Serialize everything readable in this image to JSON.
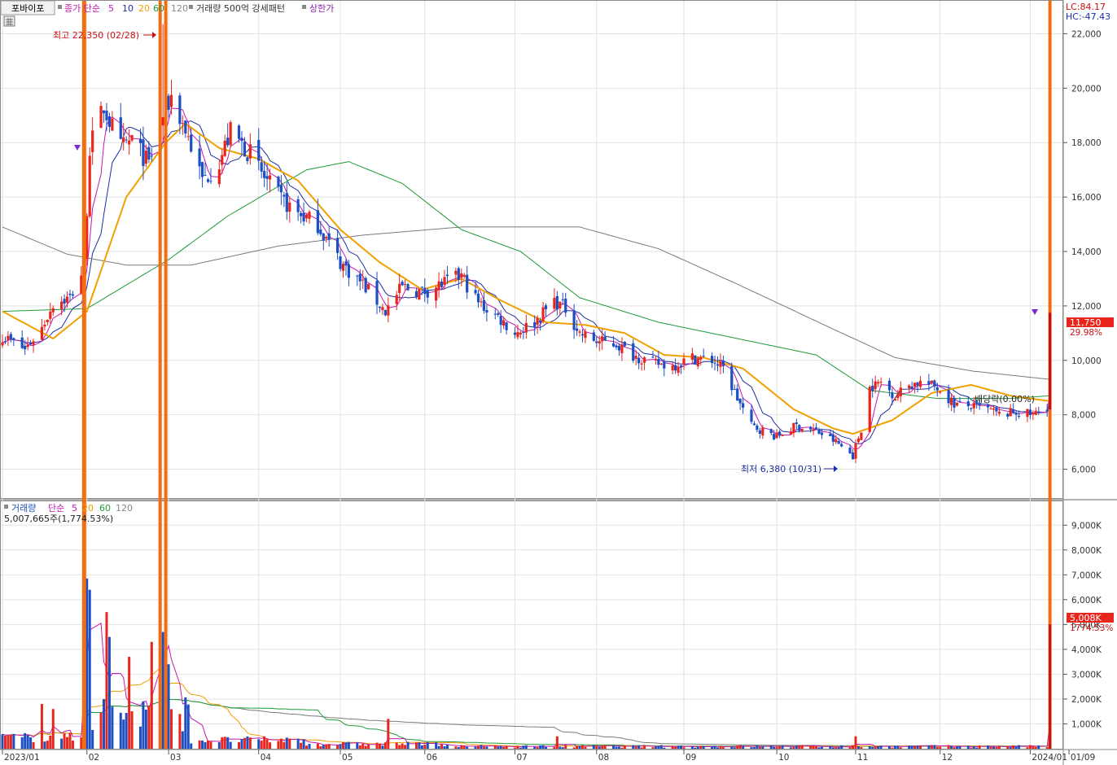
{
  "stock": {
    "name": "포바이포",
    "price_label": "11,750",
    "change_pct": "29.98%",
    "volume_label": "5,008K",
    "volume_change": "1774.53%",
    "lc": "LC:84.17",
    "hc": "HC:-47.43",
    "high_note": "최고 22,350 (02/28)",
    "low_note": "최저 6,380 (10/31)",
    "dividend_note": "배당락(0.00%)"
  },
  "legend_price": {
    "ma_type": "종가 단순",
    "periods": [
      "5",
      "10",
      "20",
      "60",
      "120"
    ],
    "volume_filter": "거래량 500억 강세패턴",
    "limit_up": "상한가"
  },
  "legend_volume": {
    "title": "거래량",
    "ma_type": "단순",
    "periods": [
      "5",
      "20",
      "60",
      "120"
    ],
    "current": "5,007,665주(1,774.53%)"
  },
  "colors": {
    "up": "#e8261d",
    "down": "#1d4fc4",
    "ma5": "#c418b4",
    "ma10": "#1c2fa3",
    "ma20": "#f0a000",
    "ma60": "#1f9a3a",
    "ma120": "#7a7a7a",
    "highlight": "#f26d12"
  },
  "chart_data": [
    {
      "type": "candlestick",
      "title": "포바이포",
      "y_ticks": [
        "6,000",
        "8,000",
        "10,000",
        "12,000",
        "14,000",
        "16,000",
        "18,000",
        "20,000",
        "22,000"
      ],
      "ylim": [
        5000,
        23000
      ],
      "x_ticks": [
        "2023/01",
        "02",
        "03",
        "04",
        "05",
        "06",
        "07",
        "08",
        "09",
        "10",
        "11",
        "12",
        "2024/01",
        "01/09"
      ],
      "xlim": [
        "2023-01-02",
        "2024-01-12"
      ],
      "price_anchors": [
        [
          "2023-01-02",
          10900
        ],
        [
          "2023-01-10",
          10400
        ],
        [
          "2023-01-16",
          11200
        ],
        [
          "2023-01-20",
          12100
        ],
        [
          "2023-01-26",
          12300
        ],
        [
          "2023-01-31",
          13400
        ],
        [
          "2023-02-02",
          17800
        ],
        [
          "2023-02-07",
          19300
        ],
        [
          "2023-02-13",
          17800
        ],
        [
          "2023-02-17",
          18100
        ],
        [
          "2023-02-23",
          17200
        ],
        [
          "2023-02-28",
          19000
        ],
        [
          "2023-03-03",
          19700
        ],
        [
          "2023-03-09",
          18200
        ],
        [
          "2023-03-14",
          16600
        ],
        [
          "2023-03-20",
          17300
        ],
        [
          "2023-03-24",
          18400
        ],
        [
          "2023-03-31",
          17600
        ],
        [
          "2023-04-05",
          16700
        ],
        [
          "2023-04-11",
          15900
        ],
        [
          "2023-04-17",
          15400
        ],
        [
          "2023-04-24",
          15000
        ],
        [
          "2023-05-02",
          13600
        ],
        [
          "2023-05-10",
          12800
        ],
        [
          "2023-05-18",
          11800
        ],
        [
          "2023-05-24",
          12700
        ],
        [
          "2023-05-31",
          12500
        ],
        [
          "2023-06-07",
          12800
        ],
        [
          "2023-06-14",
          13100
        ],
        [
          "2023-06-20",
          12100
        ],
        [
          "2023-06-27",
          11600
        ],
        [
          "2023-07-03",
          11000
        ],
        [
          "2023-07-10",
          11400
        ],
        [
          "2023-07-17",
          12200
        ],
        [
          "2023-07-21",
          11900
        ],
        [
          "2023-07-26",
          11000
        ],
        [
          "2023-08-01",
          10700
        ],
        [
          "2023-08-08",
          10600
        ],
        [
          "2023-08-14",
          10200
        ],
        [
          "2023-08-21",
          9900
        ],
        [
          "2023-08-28",
          9800
        ],
        [
          "2023-09-04",
          10100
        ],
        [
          "2023-09-11",
          10000
        ],
        [
          "2023-09-15",
          9700
        ],
        [
          "2023-09-20",
          8600
        ],
        [
          "2023-09-25",
          7600
        ],
        [
          "2023-10-04",
          7200
        ],
        [
          "2023-10-11",
          7600
        ],
        [
          "2023-10-18",
          7400
        ],
        [
          "2023-10-25",
          7000
        ],
        [
          "2023-10-31",
          6500
        ],
        [
          "2023-11-03",
          7500
        ],
        [
          "2023-11-06",
          9000
        ],
        [
          "2023-11-10",
          9200
        ],
        [
          "2023-11-15",
          8700
        ],
        [
          "2023-11-20",
          9100
        ],
        [
          "2023-11-24",
          9200
        ],
        [
          "2023-11-30",
          9000
        ],
        [
          "2023-12-06",
          8400
        ],
        [
          "2023-12-12",
          8300
        ],
        [
          "2023-12-18",
          8200
        ],
        [
          "2023-12-22",
          8000
        ],
        [
          "2023-12-28",
          8100
        ],
        [
          "2024-01-03",
          8000
        ],
        [
          "2024-01-08",
          8300
        ],
        [
          "2024-01-09",
          11750
        ]
      ],
      "ma_anchors": {
        "ma20": [
          [
            "2023-01-02",
            11800
          ],
          [
            "2023-01-20",
            10800
          ],
          [
            "2023-02-01",
            11800
          ],
          [
            "2023-02-15",
            16000
          ],
          [
            "2023-03-01",
            18000
          ],
          [
            "2023-03-08",
            18700
          ],
          [
            "2023-03-20",
            17800
          ],
          [
            "2023-04-03",
            17400
          ],
          [
            "2023-04-17",
            16600
          ],
          [
            "2023-05-02",
            14800
          ],
          [
            "2023-05-16",
            13600
          ],
          [
            "2023-05-31",
            12600
          ],
          [
            "2023-06-14",
            13000
          ],
          [
            "2023-06-28",
            12200
          ],
          [
            "2023-07-14",
            11400
          ],
          [
            "2023-07-28",
            11300
          ],
          [
            "2023-08-11",
            11000
          ],
          [
            "2023-08-25",
            10200
          ],
          [
            "2023-09-08",
            10100
          ],
          [
            "2023-09-22",
            9700
          ],
          [
            "2023-10-10",
            8200
          ],
          [
            "2023-10-24",
            7500
          ],
          [
            "2023-10-31",
            7300
          ],
          [
            "2023-11-14",
            7800
          ],
          [
            "2023-11-28",
            8800
          ],
          [
            "2023-12-12",
            9100
          ],
          [
            "2023-12-26",
            8700
          ],
          [
            "2024-01-09",
            8500
          ]
        ],
        "ma60": [
          [
            "2023-01-02",
            11800
          ],
          [
            "2023-02-01",
            11900
          ],
          [
            "2023-03-02",
            13700
          ],
          [
            "2023-03-23",
            15300
          ],
          [
            "2023-04-20",
            17000
          ],
          [
            "2023-05-05",
            17300
          ],
          [
            "2023-05-24",
            16500
          ],
          [
            "2023-06-14",
            14800
          ],
          [
            "2023-07-05",
            14000
          ],
          [
            "2023-07-26",
            12300
          ],
          [
            "2023-08-23",
            11400
          ],
          [
            "2023-09-20",
            10800
          ],
          [
            "2023-10-18",
            10200
          ],
          [
            "2023-11-06",
            8900
          ],
          [
            "2023-11-30",
            8600
          ],
          [
            "2023-12-26",
            8600
          ],
          [
            "2024-01-09",
            8700
          ]
        ],
        "ma120": [
          [
            "2023-01-02",
            14900
          ],
          [
            "2023-01-25",
            13900
          ],
          [
            "2023-02-15",
            13500
          ],
          [
            "2023-03-10",
            13500
          ],
          [
            "2023-04-10",
            14200
          ],
          [
            "2023-05-10",
            14600
          ],
          [
            "2023-06-14",
            14900
          ],
          [
            "2023-07-26",
            14900
          ],
          [
            "2023-08-23",
            14100
          ],
          [
            "2023-09-20",
            12800
          ],
          [
            "2023-10-25",
            11100
          ],
          [
            "2023-11-15",
            10100
          ],
          [
            "2023-12-13",
            9600
          ],
          [
            "2024-01-09",
            9300
          ]
        ]
      }
    },
    {
      "type": "bar",
      "title": "거래량",
      "y_ticks": [
        "1,000K",
        "2,000K",
        "3,000K",
        "4,000K",
        "5,000K",
        "6,000K",
        "7,000K",
        "8,000K",
        "9,000K"
      ],
      "ylim": [
        0,
        9500
      ],
      "unit": "K",
      "spikes": [
        [
          "2023-01-31",
          9800,
          "up"
        ],
        [
          "2023-02-01",
          6850,
          "down"
        ],
        [
          "2023-02-02",
          6400,
          "down"
        ],
        [
          "2023-02-08",
          5500,
          "up"
        ],
        [
          "2023-02-09",
          4500,
          "down"
        ],
        [
          "2023-02-16",
          3700,
          "up"
        ],
        [
          "2023-02-24",
          4300,
          "up"
        ],
        [
          "2023-02-27",
          6400,
          "up"
        ],
        [
          "2023-02-28",
          4700,
          "down"
        ],
        [
          "2023-03-02",
          3400,
          "down"
        ],
        [
          "2023-01-16",
          1800,
          "up"
        ],
        [
          "2023-01-20",
          1600,
          "up"
        ],
        [
          "2023-05-19",
          1200,
          "up"
        ],
        [
          "2023-07-18",
          500,
          "up"
        ],
        [
          "2023-11-01",
          500,
          "up"
        ],
        [
          "2024-01-09",
          5008,
          "up"
        ]
      ]
    }
  ]
}
